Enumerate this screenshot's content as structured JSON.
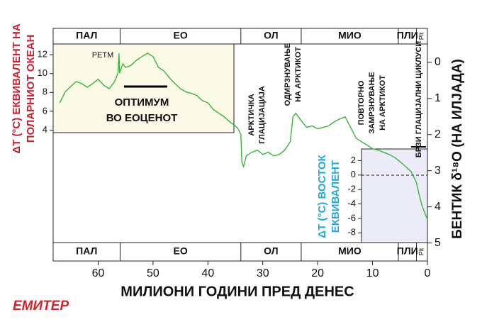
{
  "chart_data": {
    "type": "line",
    "xlabel": "МИЛИОНИ ГОДИНИ ПРЕД ДЕНЕС",
    "ylabel": "БЕНТИК δ¹⁸O (НА ИЛЈАДА)",
    "y2label": [
      "ΔT (°C) ЕКВИВАЛЕНТ НА",
      "ПОЛАРНИОТ ОКЕАН"
    ],
    "y3label": [
      "ΔT (°C) ВОСТОК",
      "ЕКВИВАЛЕНТ"
    ],
    "xlim": [
      68.2,
      0
    ],
    "xticks": [
      60,
      50,
      40,
      30,
      20,
      10,
      0
    ],
    "ylim": [
      5.5,
      -0.94
    ],
    "yticks": [
      0,
      1,
      2,
      3,
      4,
      5
    ],
    "y2lim": [
      -9.9,
      14.8
    ],
    "y2ticks": [
      4,
      6,
      8,
      10,
      12
    ],
    "y3lim": [
      -11.9,
      20.3
    ],
    "y3ticks": [
      2,
      0,
      -2,
      -4,
      -6,
      -8
    ],
    "stages": [
      "ПАЛ",
      "ЕО",
      "ОЛ",
      "МИО",
      "ПЛИ",
      "Plt"
    ],
    "stage_bounds": [
      56,
      34,
      23,
      5.3,
      2
    ],
    "annotations": [
      [
        "РЕТМ"
      ],
      [
        "ОПТИМУМ",
        "ВО ЕОЦЕНОТ"
      ],
      [
        "АРКТИЧКА",
        "ГЛАЦИЈАЦИЈА"
      ],
      [
        "ОДМРЗНУВАЊЕ",
        "НА АРКТИКОТ"
      ],
      [
        "ПОВТОРНО",
        "ЗАМРЗНУВАЊЕ",
        "НА АРКТИКОТ"
      ],
      [
        "БРЗИ ГЛАЦИЈАЛНИ ЦИКЛУСИ"
      ]
    ],
    "series": [
      {
        "color": "#3cb43c",
        "x": [
          67,
          66,
          65,
          64,
          63,
          62,
          61,
          60,
          59,
          58,
          57,
          56.4,
          56.2,
          56.1,
          55.5,
          55,
          54,
          53,
          52,
          51,
          50,
          49,
          48,
          47,
          46,
          45,
          44,
          43,
          42,
          41,
          40,
          39,
          38,
          37,
          36,
          35,
          34.5,
          34,
          33.8,
          33.5,
          33,
          32,
          31,
          30,
          29,
          28,
          27,
          26,
          25,
          24.5,
          24,
          23,
          22,
          21,
          20,
          19,
          18,
          17,
          16,
          15,
          14,
          13,
          12,
          11,
          10,
          9,
          8,
          7,
          6,
          5,
          4,
          3,
          2,
          1.5,
          1,
          0.5,
          0
        ],
        "values": [
          1.12,
          0.82,
          0.67,
          0.53,
          0.59,
          0.69,
          0.59,
          0.47,
          0.63,
          0.73,
          0.53,
          0.3,
          -0.25,
          0.3,
          0.04,
          0.14,
          0.08,
          -0.06,
          -0.16,
          -0.25,
          -0.16,
          0.14,
          0.24,
          0.43,
          0.59,
          0.73,
          0.82,
          0.86,
          0.92,
          1.06,
          1.12,
          1.31,
          1.41,
          1.51,
          1.65,
          1.76,
          1.84,
          2.0,
          2.78,
          2.88,
          2.59,
          2.49,
          2.43,
          2.55,
          2.49,
          2.59,
          2.55,
          2.43,
          2.2,
          1.51,
          1.41,
          1.61,
          1.8,
          1.76,
          1.84,
          1.8,
          1.76,
          1.65,
          1.57,
          1.51,
          1.8,
          2.1,
          2.2,
          2.29,
          2.39,
          2.43,
          2.49,
          2.55,
          2.63,
          2.75,
          2.88,
          3.02,
          3.33,
          3.67,
          3.96,
          4.16,
          4.35
        ]
      }
    ]
  },
  "logo": "ЕМИТЕР"
}
